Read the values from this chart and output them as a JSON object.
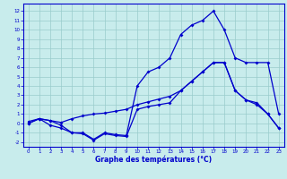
{
  "title": "Graphe des températures (°C)",
  "bg_color": "#c8ecec",
  "line_color": "#0000cc",
  "grid_color": "#99cccc",
  "x_ticks": [
    0,
    1,
    2,
    3,
    4,
    5,
    6,
    7,
    8,
    9,
    10,
    11,
    12,
    13,
    14,
    15,
    16,
    17,
    18,
    19,
    20,
    21,
    22,
    23
  ],
  "y_ticks": [
    -2,
    -1,
    0,
    1,
    2,
    3,
    4,
    5,
    6,
    7,
    8,
    9,
    10,
    11,
    12
  ],
  "ylim": [
    -2.5,
    12.8
  ],
  "xlim": [
    -0.5,
    23.5
  ],
  "line1_x": [
    0,
    1,
    2,
    3,
    4,
    5,
    6,
    7,
    8,
    9,
    10,
    11,
    12,
    13,
    14,
    15,
    16,
    17,
    18,
    19,
    20,
    21,
    22,
    23
  ],
  "line1_y": [
    0.0,
    0.5,
    -0.2,
    -0.5,
    -1.0,
    -1.1,
    -1.8,
    -1.1,
    -1.3,
    -1.4,
    1.5,
    1.8,
    2.0,
    2.2,
    3.5,
    4.5,
    5.5,
    6.5,
    6.5,
    3.5,
    2.5,
    2.0,
    1.0,
    -0.5
  ],
  "line2_x": [
    0,
    1,
    2,
    3,
    4,
    5,
    6,
    7,
    8,
    9,
    10,
    11,
    12,
    13,
    14,
    15,
    16,
    17,
    18,
    19,
    20,
    21,
    22,
    23
  ],
  "line2_y": [
    0.0,
    0.5,
    0.3,
    0.1,
    0.5,
    0.8,
    1.0,
    1.1,
    1.3,
    1.5,
    2.0,
    2.3,
    2.6,
    2.9,
    3.5,
    4.5,
    5.5,
    6.5,
    6.5,
    3.5,
    2.5,
    2.2,
    1.0,
    -0.5
  ],
  "line3_x": [
    0,
    1,
    2,
    3,
    4,
    5,
    6,
    7,
    8,
    9,
    10,
    11,
    12,
    13,
    14,
    15,
    16,
    17,
    18,
    19,
    20,
    21,
    22,
    23
  ],
  "line3_y": [
    0.2,
    0.5,
    0.3,
    -0.2,
    -1.0,
    -1.0,
    -1.7,
    -1.0,
    -1.2,
    -1.3,
    4.0,
    5.5,
    6.0,
    7.0,
    9.5,
    10.5,
    11.0,
    12.0,
    10.0,
    7.0,
    6.5,
    6.5,
    6.5,
    1.0
  ]
}
